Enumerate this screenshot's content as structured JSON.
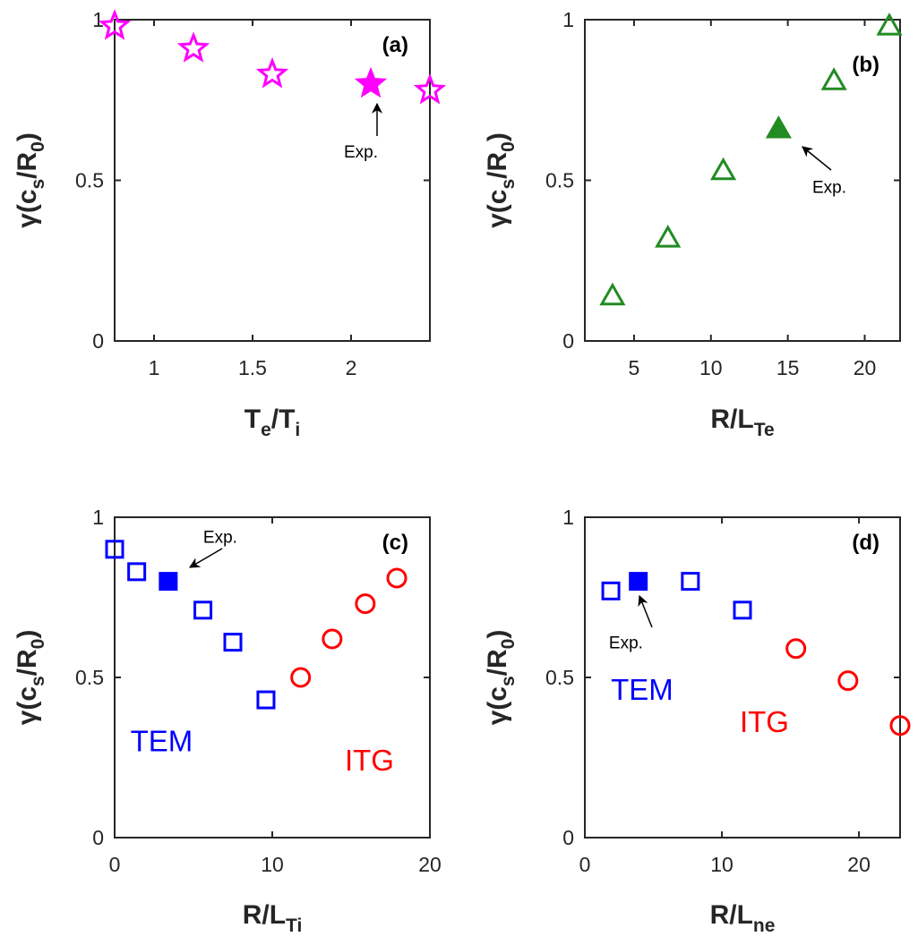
{
  "colors": {
    "magenta": "#ff00ff",
    "green": "#228b22",
    "blue": "#0000ff",
    "red": "#ff0000",
    "axis": "#262626"
  },
  "chart_data": [
    {
      "panel": "(a)",
      "type": "scatter",
      "xlabel_main": "T",
      "xlabel_sub": "e",
      "xlabel_mid": "/T",
      "xlabel_sub2": "i",
      "ylabel_pre": "γ(c",
      "ylabel_sub": "s",
      "ylabel_mid": "/R",
      "ylabel_sub2": "0",
      "ylabel_post": ")",
      "xlim": [
        0.8,
        2.4
      ],
      "ylim": [
        0,
        1
      ],
      "xticks": [
        1,
        1.5,
        2
      ],
      "xtick_labels": [
        "1",
        "1.5",
        "2"
      ],
      "yticks": [
        0,
        0.5,
        1
      ],
      "ytick_labels": [
        "0",
        "0.5",
        "1"
      ],
      "series": [
        {
          "marker": "star",
          "filled": false,
          "color": "magenta",
          "x": [
            0.8,
            1.2,
            1.6,
            2.4
          ],
          "y": [
            0.98,
            0.91,
            0.83,
            0.78
          ]
        },
        {
          "marker": "star",
          "filled": true,
          "color": "magenta",
          "x": [
            2.1
          ],
          "y": [
            0.8
          ]
        }
      ],
      "annotation": {
        "text": "Exp.",
        "x": 2.05,
        "y": 0.59
      }
    },
    {
      "panel": "(b)",
      "type": "scatter",
      "xlabel_main": "R/L",
      "xlabel_sub": "Te",
      "ylabel_pre": "γ(c",
      "ylabel_sub": "s",
      "ylabel_mid": "/R",
      "ylabel_sub2": "0",
      "ylabel_post": ")",
      "xlim": [
        1.8,
        22.3
      ],
      "ylim": [
        0,
        1
      ],
      "xticks": [
        5,
        10,
        15,
        20
      ],
      "xtick_labels": [
        "5",
        "10",
        "15",
        "20"
      ],
      "yticks": [
        0,
        0.5,
        1
      ],
      "ytick_labels": [
        "0",
        "0.5",
        "1"
      ],
      "series": [
        {
          "marker": "triangle",
          "filled": false,
          "color": "green",
          "x": [
            3.6,
            7.2,
            10.8,
            18.0,
            21.6
          ],
          "y": [
            0.14,
            0.32,
            0.53,
            0.81,
            0.98
          ]
        },
        {
          "marker": "triangle",
          "filled": true,
          "color": "green",
          "x": [
            14.4
          ],
          "y": [
            0.66
          ]
        }
      ],
      "annotation": {
        "text": "Exp.",
        "x": 17.7,
        "y": 0.48
      }
    },
    {
      "panel": "(c)",
      "type": "scatter",
      "xlabel_main": "R/L",
      "xlabel_sub": "Ti",
      "ylabel_pre": "γ(c",
      "ylabel_sub": "s",
      "ylabel_mid": "/R",
      "ylabel_sub2": "0",
      "ylabel_post": ")",
      "xlim": [
        0,
        20
      ],
      "ylim": [
        0,
        1
      ],
      "xticks": [
        0,
        10,
        20
      ],
      "xtick_labels": [
        "0",
        "10",
        "20"
      ],
      "yticks": [
        0,
        0.5,
        1
      ],
      "ytick_labels": [
        "0",
        "0.5",
        "1"
      ],
      "series": [
        {
          "marker": "square",
          "filled": false,
          "color": "blue",
          "x": [
            0,
            1.4,
            5.6,
            7.5,
            9.6
          ],
          "y": [
            0.9,
            0.83,
            0.71,
            0.61,
            0.43
          ]
        },
        {
          "marker": "square",
          "filled": true,
          "color": "blue",
          "x": [
            3.4
          ],
          "y": [
            0.8
          ]
        },
        {
          "marker": "circle",
          "filled": false,
          "color": "red",
          "x": [
            11.8,
            13.8,
            15.9,
            17.9
          ],
          "y": [
            0.5,
            0.62,
            0.73,
            0.81
          ]
        }
      ],
      "annotation": {
        "text": "Exp.",
        "x": 6.7,
        "y": 0.94
      },
      "regions": [
        {
          "text": "TEM",
          "color": "blue",
          "x": 1.0,
          "y": 0.27
        },
        {
          "text": "ITG",
          "color": "red",
          "x": 14.6,
          "y": 0.21
        }
      ]
    },
    {
      "panel": "(d)",
      "type": "scatter",
      "xlabel_main": "R/L",
      "xlabel_sub": "ne",
      "ylabel_pre": "γ(c",
      "ylabel_sub": "s",
      "ylabel_mid": "/R",
      "ylabel_sub2": "0",
      "ylabel_post": ")",
      "xlim": [
        0,
        23
      ],
      "ylim": [
        0,
        1
      ],
      "xticks": [
        0,
        10,
        20
      ],
      "xtick_labels": [
        "0",
        "10",
        "20"
      ],
      "yticks": [
        0,
        0.5,
        1
      ],
      "ytick_labels": [
        "0",
        "0.5",
        "1"
      ],
      "series": [
        {
          "marker": "square",
          "filled": false,
          "color": "blue",
          "x": [
            1.9,
            7.7,
            11.5
          ],
          "y": [
            0.77,
            0.8,
            0.71
          ]
        },
        {
          "marker": "square",
          "filled": true,
          "color": "blue",
          "x": [
            3.9
          ],
          "y": [
            0.8
          ]
        },
        {
          "marker": "circle",
          "filled": false,
          "color": "red",
          "x": [
            15.4,
            19.2,
            23.0
          ],
          "y": [
            0.59,
            0.49,
            0.35
          ]
        }
      ],
      "annotation": {
        "text": "Exp.",
        "x": 3.0,
        "y": 0.61
      },
      "regions": [
        {
          "text": "TEM",
          "color": "blue",
          "x": 1.9,
          "y": 0.43
        },
        {
          "text": "ITG",
          "color": "red",
          "x": 11.3,
          "y": 0.33
        }
      ]
    }
  ]
}
